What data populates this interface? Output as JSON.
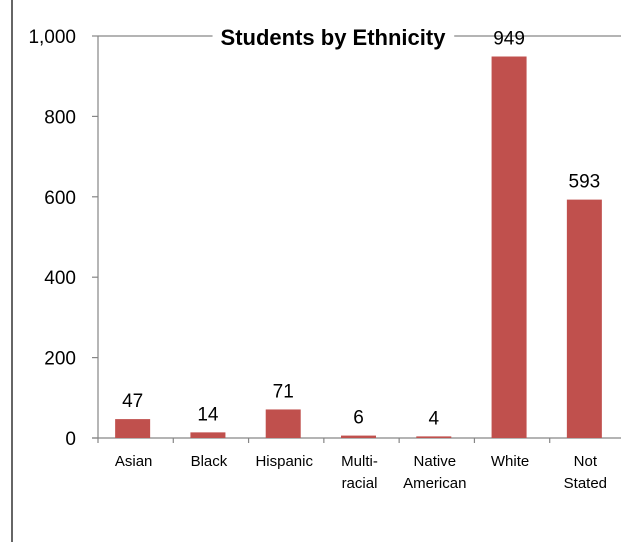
{
  "chart_data": {
    "type": "bar",
    "title": "Students by Ethnicity",
    "xlabel": "",
    "ylabel": "",
    "categories": [
      [
        "Asian"
      ],
      [
        "Black"
      ],
      [
        "Hispanic"
      ],
      [
        "Multi-",
        "racial"
      ],
      [
        "Native",
        "American"
      ],
      [
        "White"
      ],
      [
        "Not",
        "Stated"
      ]
    ],
    "values": [
      47,
      14,
      71,
      6,
      4,
      949,
      593
    ],
    "data_labels": [
      "47",
      "14",
      "71",
      "6",
      "4",
      "949",
      "593"
    ],
    "ylim": [
      0,
      1000
    ],
    "yticks": [
      0,
      200,
      400,
      600,
      800,
      1000
    ],
    "ytick_labels": [
      "0",
      "200",
      "400",
      "600",
      "800",
      "1,000"
    ],
    "grid": false,
    "legend": "none",
    "colors": {
      "bar": "#C0504D",
      "axis": "#868686",
      "frame": "#000000"
    }
  }
}
